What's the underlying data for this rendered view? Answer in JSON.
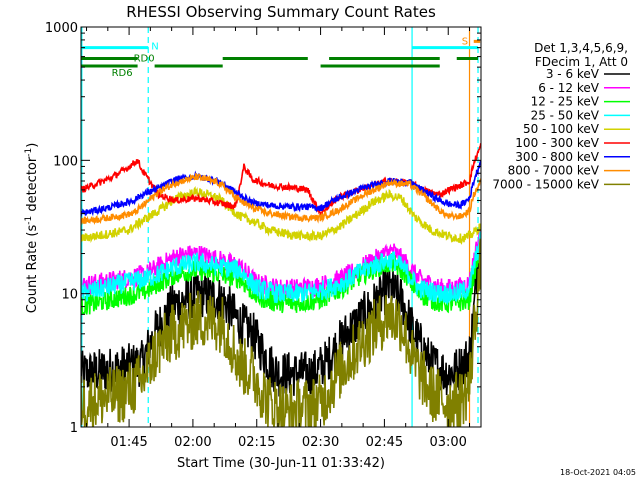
{
  "chart_data": {
    "type": "line",
    "title": "RHESSI Observing Summary Count Rates",
    "xlabel": "Start Time (30-Jun-11 01:33:42)",
    "ylabel_main": "Count Rate (s",
    "ylabel_sup": "-1",
    "ylabel_mid": " detector",
    "ylabel_sup2": "-1",
    "ylabel_end": ")",
    "yscale": "log",
    "ylim": [
      1,
      1000
    ],
    "xlim_minutes": [
      93.7,
      187.7
    ],
    "x_ticks": [
      {
        "min": 105,
        "label": "01:45"
      },
      {
        "min": 120,
        "label": "02:00"
      },
      {
        "min": 135,
        "label": "02:15"
      },
      {
        "min": 150,
        "label": "02:30"
      },
      {
        "min": 165,
        "label": "02:45"
      },
      {
        "min": 180,
        "label": "03:00"
      }
    ],
    "y_ticks": [
      {
        "value": 1,
        "label": "1"
      },
      {
        "value": 10,
        "label": "10"
      },
      {
        "value": 100,
        "label": "100"
      },
      {
        "value": 1000,
        "label": "1000"
      }
    ],
    "legend_header": [
      "Det 1,3,4,5,6,9,",
      "FDecim 1, Att 0"
    ],
    "legend": [
      {
        "label": "3 - 6 keV",
        "color": "#000000"
      },
      {
        "label": "6 - 12 keV",
        "color": "#ff00ff"
      },
      {
        "label": "12 - 25 keV",
        "color": "#00ff00"
      },
      {
        "label": "25 - 50 keV",
        "color": "#00ffff"
      },
      {
        "label": "50 - 100 keV",
        "color": "#d2d200"
      },
      {
        "label": "100 - 300 keV",
        "color": "#ff0000"
      },
      {
        "label": "300 - 800 keV",
        "color": "#0000ff"
      },
      {
        "label": "800 - 7000 keV",
        "color": "#ff8c00"
      },
      {
        "label": "7000 - 15000 keV",
        "color": "#808000"
      }
    ],
    "flags": [
      {
        "label": "N",
        "color": "#00ffff",
        "y": 700,
        "segments": [
          [
            93.7,
            109.5
          ],
          [
            171.5,
            187.0
          ]
        ]
      },
      {
        "label": "RD0",
        "color": "#008000",
        "y": 580,
        "segments": [
          [
            93.7,
            107.0
          ],
          [
            127.0,
            147.0
          ],
          [
            152.0,
            178.0
          ],
          [
            182.0,
            187.0
          ]
        ]
      },
      {
        "label": "RD6",
        "color": "#008000",
        "y": 510,
        "segments": [
          [
            93.7,
            107.0
          ],
          [
            111.0,
            127.0
          ],
          [
            150.0,
            178.0
          ]
        ]
      },
      {
        "label": "S",
        "color": "#ff8c00",
        "y": 780,
        "segments": [
          [
            186.0,
            187.5
          ]
        ]
      }
    ],
    "vlines": [
      {
        "min": 93.9,
        "color": "#00ffff",
        "dashed": false
      },
      {
        "min": 109.5,
        "color": "#00ffff",
        "dashed": true
      },
      {
        "min": 171.5,
        "color": "#00ffff",
        "dashed": false
      },
      {
        "min": 185.0,
        "color": "#ff8c00",
        "dashed": false
      },
      {
        "min": 187.0,
        "color": "#00ffff",
        "dashed": true
      }
    ],
    "series": [
      {
        "name": "3 - 6 keV",
        "color": "#000000",
        "noise": 0.35,
        "points": [
          [
            93.7,
            2.5
          ],
          [
            104,
            2.8
          ],
          [
            108,
            3.0
          ],
          [
            111,
            5
          ],
          [
            115,
            8
          ],
          [
            121,
            10
          ],
          [
            127,
            9
          ],
          [
            131,
            6
          ],
          [
            134,
            5
          ],
          [
            138,
            3
          ],
          [
            140,
            2.5
          ],
          [
            145,
            2.5
          ],
          [
            148,
            2.5
          ],
          [
            151,
            3
          ],
          [
            156,
            5
          ],
          [
            162,
            8
          ],
          [
            166,
            11
          ],
          [
            169,
            9
          ],
          [
            172,
            5
          ],
          [
            176,
            3
          ],
          [
            180,
            2.5
          ],
          [
            183,
            2.8
          ],
          [
            185,
            3.5
          ],
          [
            186,
            7
          ],
          [
            187,
            20
          ],
          [
            187.7,
            25
          ]
        ]
      },
      {
        "name": "6 - 12 keV",
        "color": "#ff00ff",
        "noise": 0.15,
        "points": [
          [
            93.7,
            11.5
          ],
          [
            104,
            13
          ],
          [
            109,
            14
          ],
          [
            112,
            16
          ],
          [
            116,
            19
          ],
          [
            121,
            20
          ],
          [
            126,
            18
          ],
          [
            131,
            16
          ],
          [
            135,
            12
          ],
          [
            140,
            11
          ],
          [
            145,
            11
          ],
          [
            150,
            11.5
          ],
          [
            155,
            13
          ],
          [
            160,
            16
          ],
          [
            164,
            19
          ],
          [
            167,
            21
          ],
          [
            170,
            17
          ],
          [
            173,
            13
          ],
          [
            178,
            11
          ],
          [
            182,
            11
          ],
          [
            185,
            12
          ],
          [
            186,
            18
          ],
          [
            187.7,
            30
          ]
        ]
      },
      {
        "name": "12 - 25 keV",
        "color": "#00ff00",
        "noise": 0.15,
        "points": [
          [
            93.7,
            8
          ],
          [
            104,
            9.5
          ],
          [
            109,
            10.5
          ],
          [
            112,
            12
          ],
          [
            116,
            14
          ],
          [
            121,
            15
          ],
          [
            126,
            14
          ],
          [
            131,
            13
          ],
          [
            135,
            9.5
          ],
          [
            140,
            8.5
          ],
          [
            145,
            8.5
          ],
          [
            150,
            9
          ],
          [
            155,
            11
          ],
          [
            160,
            14
          ],
          [
            164,
            16
          ],
          [
            167,
            17
          ],
          [
            170,
            14
          ],
          [
            173,
            10
          ],
          [
            178,
            8.5
          ],
          [
            182,
            8.5
          ],
          [
            185,
            9
          ],
          [
            186,
            14
          ],
          [
            187.7,
            22
          ]
        ]
      },
      {
        "name": "25 - 50 keV",
        "color": "#00ffff",
        "noise": 0.15,
        "points": [
          [
            93.7,
            10
          ],
          [
            104,
            12
          ],
          [
            109,
            13
          ],
          [
            112,
            14
          ],
          [
            116,
            16
          ],
          [
            121,
            17
          ],
          [
            126,
            16
          ],
          [
            131,
            15
          ],
          [
            135,
            11
          ],
          [
            140,
            10
          ],
          [
            145,
            10
          ],
          [
            150,
            10.5
          ],
          [
            155,
            12
          ],
          [
            160,
            15
          ],
          [
            164,
            17
          ],
          [
            167,
            18
          ],
          [
            170,
            15
          ],
          [
            173,
            11
          ],
          [
            178,
            10
          ],
          [
            182,
            10
          ],
          [
            185,
            11
          ],
          [
            186,
            16
          ],
          [
            187.7,
            26
          ]
        ]
      },
      {
        "name": "50 - 100 keV",
        "color": "#d2d200",
        "noise": 0.07,
        "points": [
          [
            93.7,
            26
          ],
          [
            100,
            28
          ],
          [
            105,
            30
          ],
          [
            108,
            35
          ],
          [
            112,
            42
          ],
          [
            116,
            52
          ],
          [
            121,
            58
          ],
          [
            126,
            52
          ],
          [
            131,
            38
          ],
          [
            134,
            35
          ],
          [
            138,
            30
          ],
          [
            142,
            28
          ],
          [
            146,
            27
          ],
          [
            150,
            27
          ],
          [
            154,
            31
          ],
          [
            158,
            38
          ],
          [
            162,
            48
          ],
          [
            166,
            55
          ],
          [
            169,
            52
          ],
          [
            172,
            38
          ],
          [
            176,
            30
          ],
          [
            180,
            27
          ],
          [
            183,
            26
          ],
          [
            185,
            27
          ],
          [
            187.7,
            32
          ]
        ]
      },
      {
        "name": "100 - 300 keV",
        "color": "#ff0000",
        "noise": 0.05,
        "points": [
          [
            93.7,
            60
          ],
          [
            100,
            72
          ],
          [
            104,
            85
          ],
          [
            107,
            100
          ],
          [
            108,
            85
          ],
          [
            112,
            55
          ],
          [
            116,
            50
          ],
          [
            121,
            52
          ],
          [
            126,
            48
          ],
          [
            130,
            45
          ],
          [
            132,
            90
          ],
          [
            134,
            72
          ],
          [
            138,
            65
          ],
          [
            144,
            62
          ],
          [
            147,
            60
          ],
          [
            150,
            40
          ],
          [
            154,
            52
          ],
          [
            160,
            62
          ],
          [
            166,
            70
          ],
          [
            171,
            68
          ],
          [
            174,
            60
          ],
          [
            178,
            55
          ],
          [
            180,
            60
          ],
          [
            183,
            65
          ],
          [
            185,
            70
          ],
          [
            186,
            95
          ],
          [
            187.7,
            130
          ]
        ]
      },
      {
        "name": "300 - 800 keV",
        "color": "#0000ff",
        "noise": 0.05,
        "points": [
          [
            93.7,
            40
          ],
          [
            100,
            44
          ],
          [
            106,
            50
          ],
          [
            108,
            55
          ],
          [
            112,
            62
          ],
          [
            116,
            72
          ],
          [
            121,
            76
          ],
          [
            126,
            70
          ],
          [
            131,
            55
          ],
          [
            134,
            48
          ],
          [
            138,
            46
          ],
          [
            142,
            45
          ],
          [
            146,
            45
          ],
          [
            150,
            44
          ],
          [
            154,
            52
          ],
          [
            160,
            62
          ],
          [
            166,
            70
          ],
          [
            171,
            68
          ],
          [
            174,
            60
          ],
          [
            178,
            50
          ],
          [
            180,
            47
          ],
          [
            183,
            46
          ],
          [
            185,
            52
          ],
          [
            186,
            70
          ],
          [
            187.7,
            100
          ]
        ]
      },
      {
        "name": "800 - 7000 keV",
        "color": "#ff8c00",
        "noise": 0.05,
        "points": [
          [
            93.7,
            35
          ],
          [
            100,
            37
          ],
          [
            106,
            40
          ],
          [
            109,
            48
          ],
          [
            112,
            58
          ],
          [
            116,
            68
          ],
          [
            121,
            75
          ],
          [
            126,
            68
          ],
          [
            131,
            50
          ],
          [
            134,
            44
          ],
          [
            138,
            40
          ],
          [
            142,
            38
          ],
          [
            146,
            37
          ],
          [
            150,
            37
          ],
          [
            154,
            42
          ],
          [
            160,
            55
          ],
          [
            166,
            68
          ],
          [
            171,
            66
          ],
          [
            174,
            55
          ],
          [
            178,
            42
          ],
          [
            180,
            38
          ],
          [
            183,
            38
          ],
          [
            185,
            42
          ],
          [
            186,
            55
          ],
          [
            187.7,
            70
          ]
        ]
      },
      {
        "name": "7000 - 15000 keV",
        "color": "#808000",
        "noise": 0.45,
        "points": [
          [
            93.7,
            1.5
          ],
          [
            104,
            1.8
          ],
          [
            108,
            2.2
          ],
          [
            111,
            3.5
          ],
          [
            115,
            5
          ],
          [
            121,
            6.5
          ],
          [
            127,
            6
          ],
          [
            131,
            3
          ],
          [
            134,
            2.5
          ],
          [
            138,
            1.5
          ],
          [
            142,
            1.3
          ],
          [
            146,
            1.4
          ],
          [
            150,
            1.5
          ],
          [
            154,
            2.5
          ],
          [
            160,
            4.5
          ],
          [
            166,
            7
          ],
          [
            169,
            6
          ],
          [
            172,
            3
          ],
          [
            176,
            1.8
          ],
          [
            180,
            1.5
          ],
          [
            183,
            1.6
          ],
          [
            185,
            2
          ],
          [
            186,
            5
          ],
          [
            187.7,
            18
          ]
        ]
      }
    ]
  },
  "footer": {
    "timestamp": "18-Oct-2021 04:05"
  }
}
